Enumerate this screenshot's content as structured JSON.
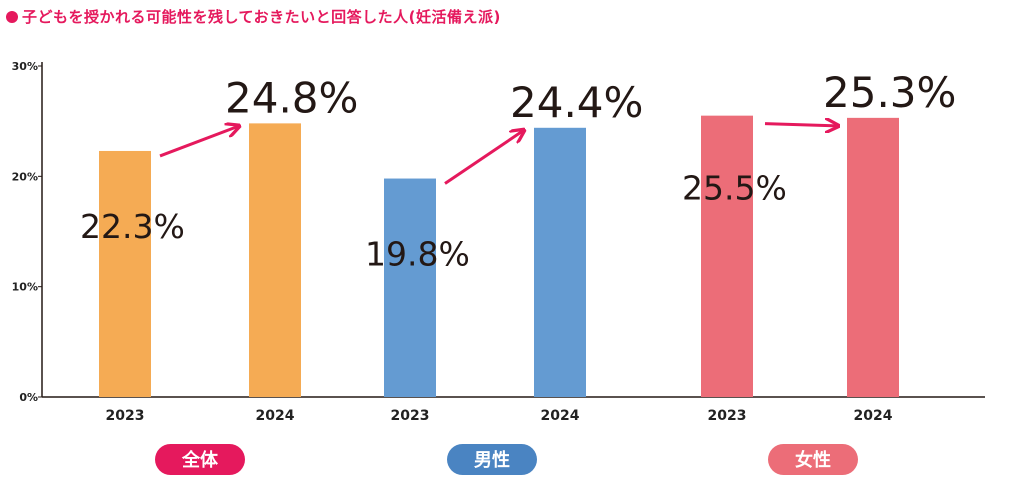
{
  "title": "子どもを授かれる可能性を残しておきたいと回答した人(妊活備え派)",
  "colors": {
    "accent": "#e5195d",
    "orange": "#f5ab54",
    "blue": "#649bd2",
    "pink": "#ec6d78"
  },
  "chart_data": {
    "type": "bar",
    "title": "子どもを授かれる可能性を残しておきたいと回答した人(妊活備え派)",
    "ylim": [
      0,
      30
    ],
    "yticks": [
      "0%",
      "10%",
      "20%",
      "30%"
    ],
    "grid": false,
    "groups": [
      {
        "name": "全体",
        "color": "#f5ab54",
        "pill_color": "#e5195d",
        "points": [
          {
            "x": "2023",
            "value": 22.3,
            "label": "22.3%"
          },
          {
            "x": "2024",
            "value": 24.8,
            "label": "24.8%"
          }
        ]
      },
      {
        "name": "男性",
        "color": "#649bd2",
        "pill_color": "#4a84c2",
        "points": [
          {
            "x": "2023",
            "value": 19.8,
            "label": "19.8%"
          },
          {
            "x": "2024",
            "value": 24.4,
            "label": "24.4%"
          }
        ]
      },
      {
        "name": "女性",
        "color": "#ec6d78",
        "pill_color": "#ec6d78",
        "points": [
          {
            "x": "2023",
            "value": 25.5,
            "label": "25.5%"
          },
          {
            "x": "2024",
            "value": 25.3,
            "label": "25.3%"
          }
        ]
      }
    ]
  }
}
